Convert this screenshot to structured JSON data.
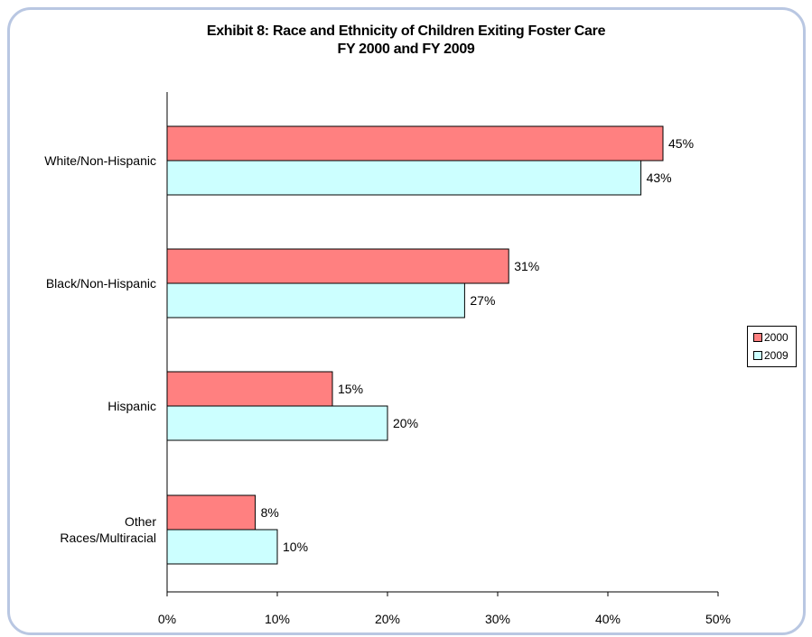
{
  "chart_data": {
    "type": "bar",
    "orientation": "horizontal",
    "title": "Exhibit 8: Race and Ethnicity of Children Exiting Foster Care",
    "subtitle": "FY 2000 and FY 2009",
    "categories": [
      "White/Non-Hispanic",
      "Black/Non-Hispanic",
      "Hispanic",
      "Other Races/Multiracial"
    ],
    "category_lines": [
      [
        "White/Non-Hispanic"
      ],
      [
        "Black/Non-Hispanic"
      ],
      [
        "Hispanic"
      ],
      [
        "Other",
        "Races/Multiracial"
      ]
    ],
    "series": [
      {
        "name": "2000",
        "values": [
          45,
          31,
          15,
          8
        ],
        "labels": [
          "45%",
          "31%",
          "15%",
          "8%"
        ],
        "color": "#ff8080"
      },
      {
        "name": "2009",
        "values": [
          43,
          27,
          20,
          10
        ],
        "labels": [
          "43%",
          "27%",
          "20%",
          "10%"
        ],
        "color": "#ccffff"
      }
    ],
    "xlim": [
      0,
      50
    ],
    "xticks": [
      0,
      10,
      20,
      30,
      40,
      50
    ],
    "xtick_labels": [
      "0%",
      "10%",
      "20%",
      "30%",
      "40%",
      "50%"
    ],
    "xlabel": "",
    "ylabel": "",
    "grid": false,
    "legend_position": "right"
  },
  "colors": {
    "frame_border": "#b9c7e2",
    "bar_border": "#000000"
  }
}
